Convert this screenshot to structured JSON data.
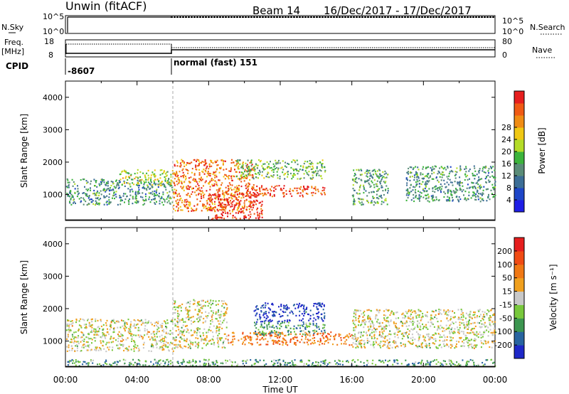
{
  "header": {
    "title": "Unwin (fitACF)",
    "beam_label": "Beam 14",
    "date_range": "16/Dec/2017 - 17/Dec/2017"
  },
  "top_panels": {
    "nsky_label": "N.Sky",
    "nsky_ticks": [
      "10^5",
      "10^0"
    ],
    "nsearch_label": "N.Search",
    "freq_label": "Freq.",
    "freq_unit": "[MHz]",
    "freq_ticks": [
      "18",
      "8"
    ],
    "nave_label": "Nave",
    "nave_ticks": [
      "80",
      "0"
    ],
    "cpid_label": "CPID",
    "cpid_segments": [
      "-8607",
      "normal (fast) 151"
    ]
  },
  "chart_data": [
    {
      "type": "heatmap",
      "name": "power",
      "ylabel": "Slant Range [km]",
      "ylim": [
        200,
        4500
      ],
      "yticks": [
        "1000",
        "2000",
        "3000",
        "4000"
      ],
      "xlim_hours": [
        0,
        24
      ],
      "colorbar": {
        "label": "Power [dB]",
        "ticks": [
          "4",
          "8",
          "12",
          "16",
          "20",
          "24",
          "28"
        ],
        "colors": [
          "#1e1ee6",
          "#1e46c8",
          "#3c6e96",
          "#5a8c78",
          "#3cb43c",
          "#b4dc28",
          "#f0c814",
          "#f08c14",
          "#f05a14",
          "#e61e1e"
        ]
      },
      "bands": [
        {
          "t": [
            0.0,
            6.0
          ],
          "r": [
            700,
            1500
          ],
          "c": 0.35
        },
        {
          "t": [
            3.0,
            6.0
          ],
          "r": [
            1300,
            1800
          ],
          "c": 0.55
        },
        {
          "t": [
            6.0,
            10.5
          ],
          "r": [
            500,
            2100
          ],
          "c": 0.8
        },
        {
          "t": [
            8.0,
            11.0
          ],
          "r": [
            250,
            1100
          ],
          "c": 0.95
        },
        {
          "t": [
            10.0,
            14.5
          ],
          "r": [
            950,
            1300
          ],
          "c": 0.9
        },
        {
          "t": [
            9.5,
            14.5
          ],
          "r": [
            1500,
            2100
          ],
          "c": 0.45
        },
        {
          "t": [
            16.0,
            18.0
          ],
          "r": [
            700,
            1800
          ],
          "c": 0.4
        },
        {
          "t": [
            19.0,
            24.0
          ],
          "r": [
            800,
            1900
          ],
          "c": 0.35
        }
      ]
    },
    {
      "type": "heatmap",
      "name": "velocity",
      "ylabel": "Slant Range [km]",
      "ylim": [
        200,
        4500
      ],
      "yticks": [
        "1000",
        "2000",
        "3000",
        "4000"
      ],
      "xlim_hours": [
        0,
        24
      ],
      "xticks": [
        "00:00",
        "04:00",
        "08:00",
        "12:00",
        "16:00",
        "20:00",
        "00:00"
      ],
      "xlabel": "Time UT",
      "colorbar": {
        "label": "Velocity [m s⁻¹]",
        "ticks": [
          "200",
          "100",
          "50",
          "15",
          "-15",
          "-50",
          "-100",
          "-200"
        ],
        "colors": [
          "#1e28c8",
          "#2864a0",
          "#3c9650",
          "#78c83c",
          "#c8c8c8",
          "#f0a01e",
          "#f07814",
          "#f04b14",
          "#e61e1e"
        ]
      },
      "bands": [
        {
          "t": [
            0.0,
            6.0
          ],
          "r": [
            700,
            1700
          ],
          "c": 0.5
        },
        {
          "t": [
            6.0,
            9.0
          ],
          "r": [
            800,
            2300
          ],
          "c": 0.5
        },
        {
          "t": [
            9.0,
            16.0
          ],
          "r": [
            900,
            1300
          ],
          "c": 0.72
        },
        {
          "t": [
            10.5,
            14.5
          ],
          "r": [
            1600,
            2200
          ],
          "c": 0.05
        },
        {
          "t": [
            10.5,
            14.5
          ],
          "r": [
            1200,
            1600
          ],
          "c": 0.3
        },
        {
          "t": [
            16.0,
            24.0
          ],
          "r": [
            800,
            2000
          ],
          "c": 0.5
        },
        {
          "t": [
            0.0,
            24.0
          ],
          "r": [
            250,
            450
          ],
          "c": 0.3
        }
      ]
    }
  ]
}
